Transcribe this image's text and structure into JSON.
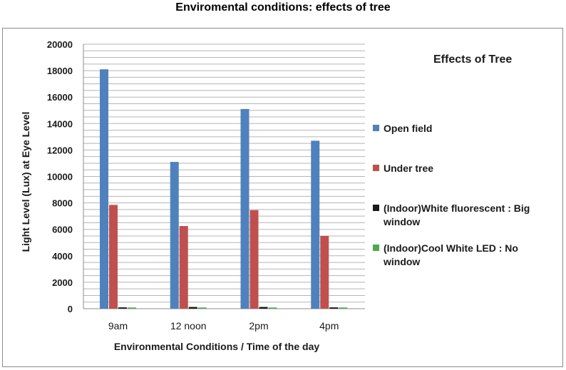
{
  "page": {
    "title": "Enviromental conditions: effects of tree"
  },
  "chart_data": {
    "type": "bar",
    "title": "Enviromental conditions: effects of tree",
    "legend_title": "Effects of Tree",
    "xlabel": "Environmental Conditions / Time of the day",
    "ylabel": "Light Level (Lux) at Eye Level",
    "categories": [
      "9am",
      "12 noon",
      "2pm",
      "4pm"
    ],
    "ylim": [
      0,
      20000
    ],
    "yticks": [
      0,
      2000,
      4000,
      6000,
      8000,
      10000,
      12000,
      14000,
      16000,
      18000,
      20000
    ],
    "minor_grid_step": 500,
    "grid": true,
    "legend_position": "right",
    "series": [
      {
        "name": "Open field",
        "legend_lines": [
          "Open field"
        ],
        "color": "#4f81bd",
        "values": [
          18100,
          11100,
          15100,
          12700
        ]
      },
      {
        "name": "Under tree",
        "legend_lines": [
          "Under tree"
        ],
        "color": "#c0504d",
        "values": [
          7850,
          6250,
          7450,
          5500
        ]
      },
      {
        "name": "(Indoor)White fluorescent : Big window",
        "legend_lines": [
          "(Indoor)White fluorescent : Big",
          "window"
        ],
        "color": "#1a1a1a",
        "values": [
          100,
          130,
          130,
          100
        ]
      },
      {
        "name": "(Indoor)Cool White LED : No window",
        "legend_lines": [
          "(Indoor)Cool White LED : No",
          "window"
        ],
        "color": "#4ea84e",
        "values": [
          90,
          90,
          90,
          90
        ]
      }
    ]
  }
}
